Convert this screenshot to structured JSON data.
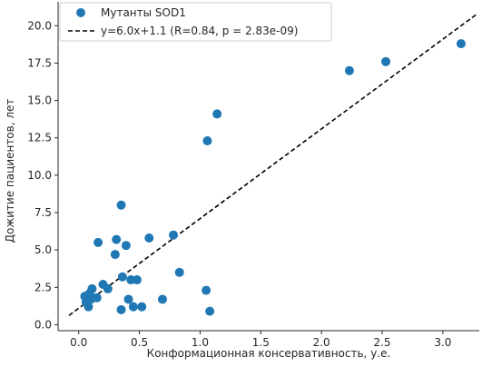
{
  "chart_data": {
    "type": "scatter",
    "xlabel": "Конформационная консервативность, у.е.",
    "ylabel": "Дожитие пациентов, лет",
    "xlim": [
      -0.17,
      3.3
    ],
    "ylim": [
      -0.4,
      21.6
    ],
    "xticks": [
      0.0,
      0.5,
      1.0,
      1.5,
      2.0,
      2.5,
      3.0
    ],
    "xtick_labels": [
      "0.0",
      "0.5",
      "1.0",
      "1.5",
      "2.0",
      "2.5",
      "3.0"
    ],
    "yticks": [
      0.0,
      2.5,
      5.0,
      7.5,
      10.0,
      12.5,
      15.0,
      17.5,
      20.0
    ],
    "ytick_labels": [
      "0.0",
      "2.5",
      "5.0",
      "7.5",
      "10.0",
      "12.5",
      "15.0",
      "17.5",
      "20.0"
    ],
    "grid": false,
    "legend_position": "top-left",
    "series": [
      {
        "name": "Мутанты SOD1",
        "kind": "scatter",
        "color": "#1f77b4",
        "points": [
          [
            0.05,
            1.9
          ],
          [
            0.06,
            1.5
          ],
          [
            0.08,
            1.2
          ],
          [
            0.09,
            2.1
          ],
          [
            0.1,
            1.7
          ],
          [
            0.11,
            2.4
          ],
          [
            0.15,
            1.8
          ],
          [
            0.16,
            5.5
          ],
          [
            0.2,
            2.7
          ],
          [
            0.24,
            2.4
          ],
          [
            0.3,
            4.7
          ],
          [
            0.31,
            5.7
          ],
          [
            0.35,
            8.0
          ],
          [
            0.35,
            1.0
          ],
          [
            0.36,
            3.2
          ],
          [
            0.39,
            5.3
          ],
          [
            0.41,
            1.7
          ],
          [
            0.43,
            3.0
          ],
          [
            0.45,
            1.2
          ],
          [
            0.48,
            3.0
          ],
          [
            0.52,
            1.2
          ],
          [
            0.58,
            5.8
          ],
          [
            0.69,
            1.7
          ],
          [
            0.78,
            6.0
          ],
          [
            0.83,
            3.5
          ],
          [
            1.05,
            2.3
          ],
          [
            1.06,
            12.3
          ],
          [
            1.08,
            0.9
          ],
          [
            1.14,
            14.1
          ],
          [
            2.23,
            17.0
          ],
          [
            2.53,
            17.6
          ],
          [
            3.15,
            18.8
          ]
        ]
      },
      {
        "name": "y=6.0x+1.1 (R=0.84, p = 2.83e-09)",
        "kind": "line",
        "style": "dashed",
        "color": "#000000",
        "slope": 6.0,
        "intercept": 1.1,
        "x_range": [
          -0.08,
          3.28
        ]
      }
    ]
  }
}
